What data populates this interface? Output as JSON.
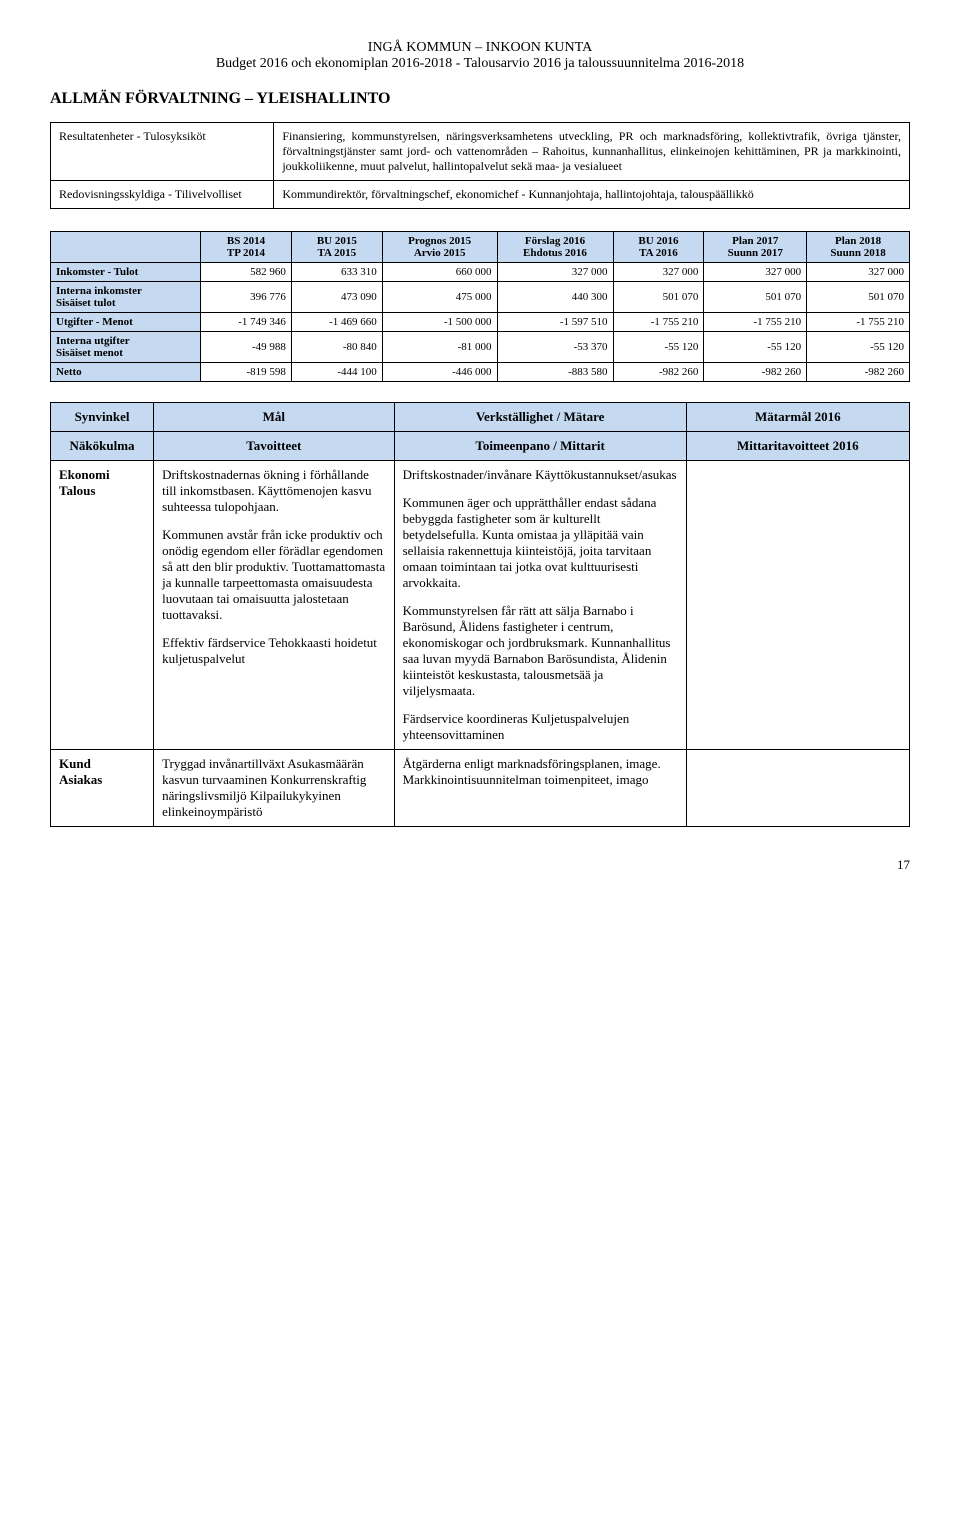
{
  "header": {
    "line1": "INGÅ KOMMUN – INKOON KUNTA",
    "line2": "Budget 2016 och ekonomiplan 2016-2018  -  Talousarvio 2016 ja taloussuunnitelma 2016-2018"
  },
  "section_title": "ALLMÄN FÖRVALTNING – YLEISHALLINTO",
  "def_table": {
    "rows": [
      {
        "left": "Resultatenheter - Tulosyksiköt",
        "right": "Finansiering, kommunstyrelsen, näringsverksamhetens utveckling, PR och marknadsföring, kollektivtrafik, övriga tjänster, förvaltningstjänster samt jord- och vattenområden – Rahoitus, kunnanhallitus, elinkeinojen kehittäminen, PR ja markkinointi, joukkoliikenne, muut palvelut, hallintopalvelut sekä maa- ja vesialueet"
      },
      {
        "left": "Redovisningsskyldiga - Tilivelvolliset",
        "right": "Kommundirektör, förvaltningschef, ekonomichef - Kunnanjohtaja, hallintojohtaja, talouspäällikkö"
      }
    ]
  },
  "fin_table": {
    "corner": "",
    "headers": [
      "BS 2014\nTP 2014",
      "BU 2015\nTA 2015",
      "Prognos 2015\nArvio 2015",
      "Förslag 2016\nEhdotus 2016",
      "BU 2016\nTA 2016",
      "Plan 2017\nSuunn 2017",
      "Plan 2018\nSuunn 2018"
    ],
    "rows": [
      {
        "label": "Inkomster - Tulot",
        "cells": [
          "582 960",
          "633 310",
          "660 000",
          "327 000",
          "327 000",
          "327 000",
          "327 000"
        ]
      },
      {
        "label": "Interna inkomster\nSisäiset tulot",
        "cells": [
          "396 776",
          "473 090",
          "475 000",
          "440 300",
          "501 070",
          "501 070",
          "501 070"
        ]
      },
      {
        "label": "Utgifter - Menot",
        "cells": [
          "-1 749 346",
          "-1 469 660",
          "-1 500 000",
          "-1 597 510",
          "-1 755 210",
          "-1 755 210",
          "-1 755 210"
        ]
      },
      {
        "label": "Interna utgifter\nSisäiset menot",
        "cells": [
          "-49 988",
          "-80 840",
          "-81 000",
          "-53 370",
          "-55 120",
          "-55 120",
          "-55 120"
        ]
      },
      {
        "label": "Netto",
        "cells": [
          "-819 598",
          "-444 100",
          "-446 000",
          "-883 580",
          "-982 260",
          "-982 260",
          "-982 260"
        ]
      }
    ]
  },
  "goals_table": {
    "header": {
      "c1a": "Synvinkel",
      "c2a": "Mål",
      "c3a": "Verkställighet / Mätare",
      "c4a": "Mätarmål 2016",
      "c1b": "Näkökulma",
      "c2b": "Tavoitteet",
      "c3b": "Toimeenpano / Mittarit",
      "c4b": "Mittaritavoitteet 2016"
    },
    "row_ekonomi": {
      "label": "Ekonomi\nTalous",
      "mal_p1": "Driftskostnadernas ökning i förhållande till inkomstbasen. Käyttömenojen kasvu suhteessa tulopohjaan.",
      "mal_p2": "Kommunen avstår från icke produktiv och onödig egendom eller förädlar egendomen så att den blir produktiv. Tuottamattomasta ja kunnalle tarpeettomasta omaisuudesta luovutaan tai omaisuutta jalostetaan tuottavaksi.",
      "mal_p3": "Effektiv färdservice Tehokkaasti hoidetut kuljetuspalvelut",
      "verk_p1": "Driftskostnader/invånare Käyttökustannukset/asukas",
      "verk_p2": "Kommunen äger och upprätthåller endast sådana bebyggda fastigheter som är kulturellt betydelsefulla. Kunta omistaa ja ylläpitää vain sellaisia rakennettuja kiinteistöjä, joita tarvitaan omaan toimintaan tai jotka ovat kulttuurisesti arvokkaita.",
      "verk_p3": "Kommunstyrelsen får rätt att sälja Barnabo i Barösund, Ålidens fastigheter i centrum, ekonomiskogar och jordbruksmark. Kunnanhallitus saa luvan myydä Barnabon Barösundista, Ålidenin kiinteistöt keskustasta, talousmetsää ja viljelysmaata.",
      "verk_p4": "Färdservice koordineras Kuljetuspalvelujen yhteensovittaminen",
      "mat": ""
    },
    "row_kund": {
      "label": "Kund\nAsiakas",
      "mal": "Tryggad invånartillväxt Asukasmäärän kasvun turvaaminen Konkurrenskraftig näringslivsmiljö Kilpailukykyinen elinkeinoympäristö",
      "verk": "Åtgärderna enligt marknadsföringsplanen, image. Markkinointisuunnitelman toimenpiteet, imago",
      "mat": ""
    }
  },
  "page_number": "17",
  "colors": {
    "header_bg": "#c5d9f1",
    "border": "#000000",
    "page_bg": "#ffffff",
    "text": "#000000"
  }
}
